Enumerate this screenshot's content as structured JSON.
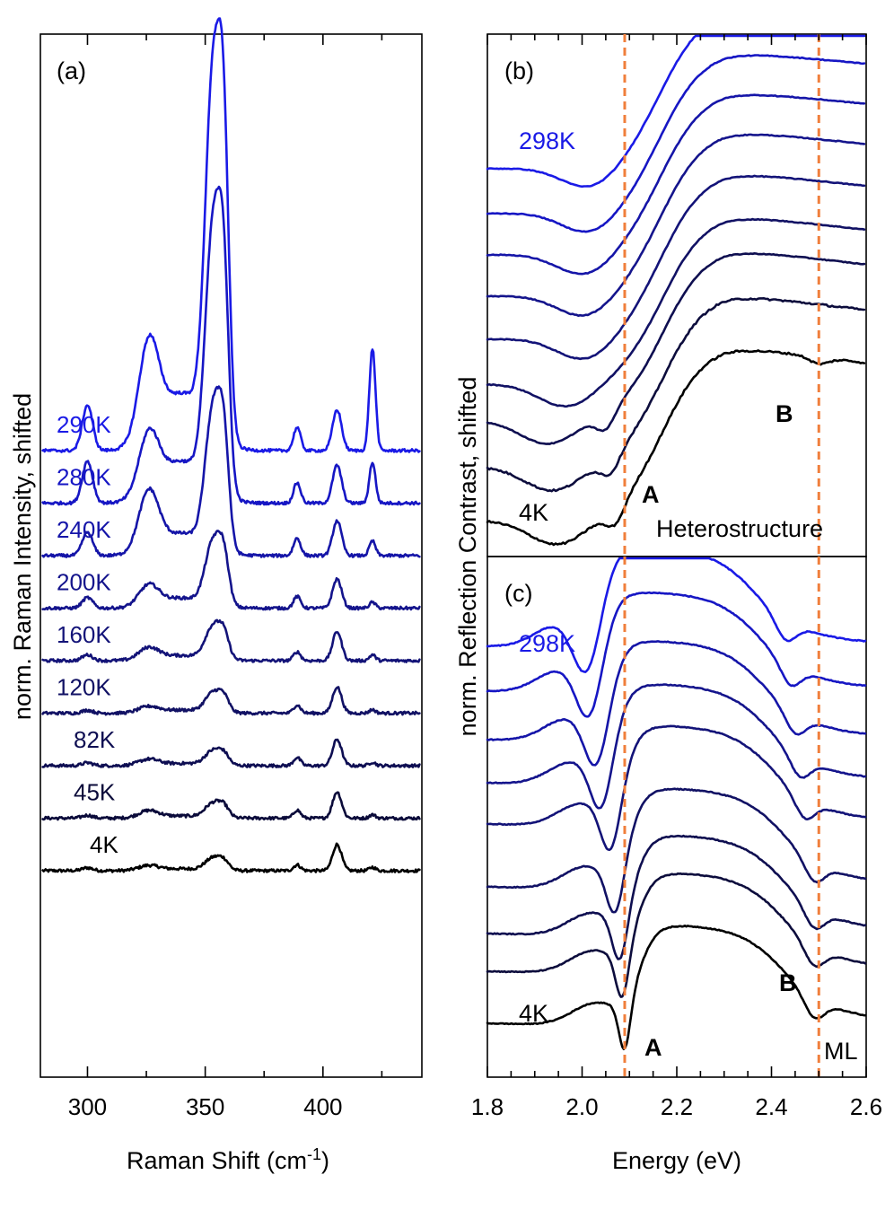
{
  "chart_data": [
    {
      "panel": "(a)",
      "type": "line",
      "xlabel": "Raman Shift (cm",
      "xlabel_sup": "-1",
      "xlabel_tail": ")",
      "ylabel": "norm. Raman Intensity, shifted",
      "xlim": [
        280,
        442
      ],
      "xticks": [
        300,
        350,
        400
      ],
      "grid": false,
      "series": [
        {
          "name": "4K",
          "color": "#000000",
          "offset": 0.0
        },
        {
          "name": "45K",
          "color": "#0b0b3a",
          "offset": 0.9
        },
        {
          "name": "82K",
          "color": "#0e0e52",
          "offset": 1.8
        },
        {
          "name": "120K",
          "color": "#111164",
          "offset": 2.7
        },
        {
          "name": "160K",
          "color": "#131378",
          "offset": 3.6
        },
        {
          "name": "200K",
          "color": "#14148c",
          "offset": 4.5
        },
        {
          "name": "240K",
          "color": "#1515a8",
          "offset": 5.4
        },
        {
          "name": "280K",
          "color": "#1616c4",
          "offset": 6.3
        },
        {
          "name": "290K",
          "color": "#1a1ae6",
          "offset": 7.2
        }
      ],
      "peaks": [
        {
          "center": 300,
          "width": 2.2,
          "amplitude": [
            0.05,
            0.05,
            0.05,
            0.05,
            0.1,
            0.18,
            0.4,
            0.72,
            0.78
          ]
        },
        {
          "center": 326,
          "width": 4.2,
          "amplitude": [
            0.08,
            0.12,
            0.1,
            0.1,
            0.2,
            0.35,
            1.0,
            1.0,
            1.6
          ]
        },
        {
          "center": 355,
          "width": 3.4,
          "amplitude": [
            0.28,
            0.33,
            0.33,
            0.45,
            0.75,
            1.45,
            3.2,
            6.0,
            8.2
          ]
        },
        {
          "center": 389,
          "width": 1.5,
          "amplitude": [
            0.1,
            0.14,
            0.14,
            0.14,
            0.15,
            0.2,
            0.3,
            0.35,
            0.4
          ]
        },
        {
          "center": 406,
          "width": 1.9,
          "amplitude": [
            0.45,
            0.45,
            0.45,
            0.45,
            0.5,
            0.5,
            0.6,
            0.65,
            0.7
          ]
        },
        {
          "center": 421,
          "width": 1.3,
          "amplitude": [
            0.06,
            0.06,
            0.06,
            0.06,
            0.1,
            0.1,
            0.25,
            0.7,
            1.75
          ]
        }
      ]
    },
    {
      "panel": "(b)",
      "type": "line",
      "xlabel": "",
      "ylabel": "norm. Reflection Contrast, shifted",
      "xlim": [
        1.8,
        2.6
      ],
      "ylabel_shared": true,
      "vlines": [
        2.09,
        2.5
      ],
      "annotations": {
        "hi_temp": "298K",
        "lo_temp": "4K",
        "A": "A",
        "B": "B",
        "sample": "Heterostructure"
      },
      "series_count": 9,
      "dip_energy": [
        1.95,
        1.94,
        1.93,
        1.97,
        2.01,
        2.01,
        2.01,
        2.02,
        2.02
      ],
      "second_dip": [
        2.07,
        2.06,
        2.05,
        null,
        null,
        null,
        null,
        null,
        null
      ]
    },
    {
      "panel": "(c)",
      "type": "line",
      "xlabel": "Energy (eV)",
      "xlim": [
        1.8,
        2.6
      ],
      "xticks": [
        1.8,
        2.0,
        2.2,
        2.4,
        2.6
      ],
      "vlines": [
        2.09,
        2.5
      ],
      "annotations": {
        "hi_temp": "298K",
        "lo_temp": "4K",
        "A": "A",
        "B": "B",
        "sample": "ML"
      },
      "series_count": 9,
      "A_dip_energy": [
        2.09,
        2.085,
        2.08,
        2.07,
        2.06,
        2.04,
        2.03,
        2.015,
        2.01
      ],
      "B_dip_energy": [
        2.49,
        2.49,
        2.49,
        2.49,
        2.47,
        2.46,
        2.45,
        2.44,
        2.43
      ]
    }
  ]
}
